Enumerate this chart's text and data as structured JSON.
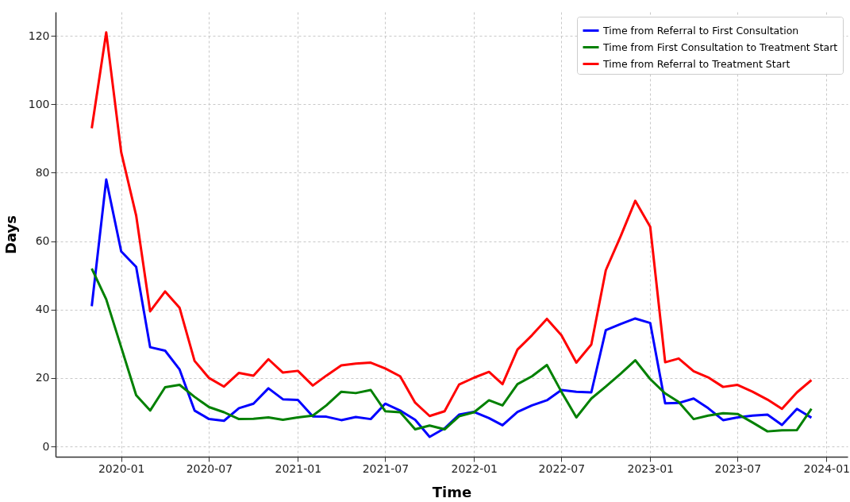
{
  "chart_data": {
    "type": "line",
    "xlabel": "Time",
    "ylabel": "Days",
    "x": [
      "2019-11",
      "2019-12",
      "2020-01",
      "2020-02",
      "2020-03",
      "2020-04",
      "2020-05",
      "2020-06",
      "2020-07",
      "2020-08",
      "2020-09",
      "2020-10",
      "2020-11",
      "2020-12",
      "2021-01",
      "2021-02",
      "2021-03",
      "2021-04",
      "2021-05",
      "2021-06",
      "2021-07",
      "2021-08",
      "2021-09",
      "2021-10",
      "2021-11",
      "2021-12",
      "2022-01",
      "2022-02",
      "2022-03",
      "2022-04",
      "2022-05",
      "2022-06",
      "2022-07",
      "2022-08",
      "2022-09",
      "2022-10",
      "2022-11",
      "2022-12",
      "2023-01",
      "2023-02",
      "2023-03",
      "2023-04",
      "2023-05",
      "2023-06",
      "2023-07",
      "2023-08",
      "2023-09",
      "2023-10",
      "2023-11",
      "2023-12"
    ],
    "series": [
      {
        "name": "Time from Referral to First Consultation",
        "color": "#0000ff",
        "values": [
          41,
          78,
          57,
          52.5,
          29,
          28,
          22.5,
          10.5,
          8,
          7.5,
          11.2,
          12.5,
          17,
          13.8,
          13.6,
          8.8,
          8.7,
          7.7,
          8.6,
          8,
          12.5,
          10.5,
          7.8,
          2.8,
          5.3,
          9.3,
          10.1,
          8.3,
          6.2,
          10.1,
          12,
          13.5,
          16.5,
          16,
          15.8,
          34,
          35.8,
          37.4,
          36.1,
          12.6,
          12.7,
          14,
          11.2,
          7.7,
          8.5,
          9,
          9.3,
          6.3,
          11,
          8.4
        ]
      },
      {
        "name": "Time from First Consultation to Treatment Start",
        "color": "#008000",
        "values": [
          52,
          43,
          29,
          15,
          10.5,
          17.3,
          18,
          14.5,
          11.5,
          10,
          8,
          8.1,
          8.5,
          7.8,
          8.5,
          9,
          12,
          16,
          15.6,
          16.5,
          10.3,
          10,
          5,
          6.1,
          5,
          8.8,
          10,
          13.5,
          12,
          18.2,
          20.5,
          23.8,
          16,
          8.5,
          14,
          17.5,
          21.3,
          25.2,
          19.7,
          15.5,
          13,
          8,
          9,
          9.7,
          9.5,
          7,
          4.4,
          4.7,
          4.8,
          11
        ]
      },
      {
        "name": "Time from Referral to Treatment Start",
        "color": "#ff0000",
        "values": [
          93,
          121,
          86,
          67.5,
          39.5,
          45.3,
          40.5,
          25,
          20,
          17.5,
          21.5,
          20.7,
          25.5,
          21.6,
          22.1,
          17.8,
          20.7,
          23.7,
          24.2,
          24.5,
          22.8,
          20.5,
          12.8,
          8.9,
          10.3,
          18.1,
          20.1,
          21.8,
          18.2,
          28.3,
          32.5,
          37.3,
          32.5,
          24.5,
          29.8,
          51.5,
          61.5,
          71.8,
          64.2,
          24.6,
          25.7,
          22,
          20.2,
          17.4,
          18,
          16,
          13.7,
          11,
          15.8,
          19.4
        ]
      }
    ],
    "xlim": [
      "2019-08-18",
      "2024-02-14"
    ],
    "xticks": [
      "2020-01",
      "2020-07",
      "2021-01",
      "2021-07",
      "2022-01",
      "2022-07",
      "2023-01",
      "2023-07",
      "2024-01"
    ],
    "ylim": [
      -3,
      127
    ],
    "yticks": [
      0,
      20,
      40,
      60,
      80,
      100,
      120
    ],
    "grid": true,
    "legend": "top right",
    "line_style": "solid",
    "marker": "none"
  }
}
